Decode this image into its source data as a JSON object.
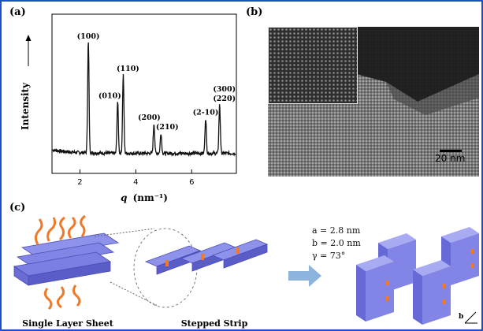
{
  "panel_labels": {
    "a": "(a)",
    "b": "(b)",
    "c": "(c)"
  },
  "chart_data": {
    "type": "line",
    "ylabel": "Intensity",
    "xlabel": "q (nm⁻¹)",
    "xlabel_symbol": "q",
    "xlabel_unit": "(nm⁻¹)",
    "xlim": [
      1.0,
      7.6
    ],
    "x_ticks": [
      2,
      4,
      6
    ],
    "y_ticks_labeled": false,
    "peaks": [
      {
        "label": "(100)",
        "q": 2.3,
        "height": 0.82
      },
      {
        "label": "(010)",
        "q": 3.35,
        "height": 0.38
      },
      {
        "label": "(110)",
        "q": 3.55,
        "height": 0.58
      },
      {
        "label": "(200)",
        "q": 4.65,
        "height": 0.22
      },
      {
        "label": "(210)",
        "q": 4.9,
        "height": 0.15
      },
      {
        "label": "(2-10)",
        "q": 6.5,
        "height": 0.26
      },
      {
        "label": "(300)",
        "q": 7.0,
        "height": 0.36
      },
      {
        "label": "(220)",
        "q": 7.0,
        "height": 0.36
      }
    ]
  },
  "tem": {
    "scale_bar_label": "20 nm"
  },
  "schematic": {
    "caption_sheet": "Single Layer Sheet",
    "caption_strip": "Stepped Strip",
    "lattice": {
      "a": "a = 2.8 nm",
      "b": "b = 2.0 nm",
      "gamma": "γ = 73°"
    },
    "axis_label_b": "b",
    "arrow_color": "#8db4dc",
    "block_color": "#7b7fe3",
    "tail_color": "#ee7a2a"
  }
}
